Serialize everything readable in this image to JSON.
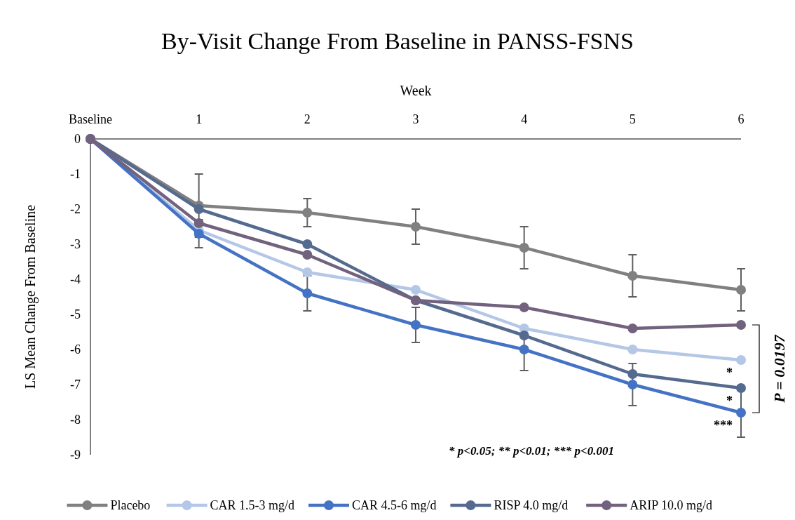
{
  "chart_data": {
    "type": "line",
    "title": "By-Visit Change From Baseline in PANSS-FSNS",
    "xlabel": "Week",
    "ylabel": "LS Mean Change From Baseline",
    "categories": [
      "Baseline",
      "1",
      "2",
      "3",
      "4",
      "5",
      "6"
    ],
    "series": [
      {
        "name": "Placebo",
        "color": "#808080",
        "values": [
          0,
          -1.9,
          -2.1,
          -2.5,
          -3.1,
          -3.9,
          -4.3
        ],
        "errors": [
          null,
          0.9,
          0.4,
          0.5,
          0.6,
          0.6,
          0.6
        ]
      },
      {
        "name": "CAR 1.5-3 mg/d",
        "color": "#b4c7e7",
        "values": [
          0,
          -2.6,
          -3.8,
          -4.3,
          -5.4,
          -6.0,
          -6.3
        ]
      },
      {
        "name": "CAR 4.5-6 mg/d",
        "color": "#4472c4",
        "values": [
          0,
          -2.7,
          -4.4,
          -5.3,
          -6.0,
          -7.0,
          -7.8
        ],
        "errors": [
          null,
          0.4,
          0.5,
          0.5,
          0.6,
          0.6,
          0.7
        ]
      },
      {
        "name": "RISP 4.0 mg/d",
        "color": "#556a8f",
        "values": [
          0,
          -2.0,
          -3.0,
          -4.6,
          -5.6,
          -6.7,
          -7.1
        ]
      },
      {
        "name": "ARIP 10.0 mg/d",
        "color": "#72627e",
        "values": [
          0,
          -2.4,
          -3.3,
          -4.6,
          -4.8,
          -5.4,
          -5.3
        ]
      }
    ],
    "ylim": [
      -9,
      0
    ],
    "yticks": [
      0,
      -1,
      -2,
      -3,
      -4,
      -5,
      -6,
      -7,
      -8,
      -9
    ],
    "grid": false,
    "legend": "bottom",
    "marker": "circle",
    "line_style": "solid",
    "annotations": [
      "* p<0.05; ** p<0.01; *** p<0.001",
      "P = 0.0197",
      {
        "text": "*",
        "x": "6",
        "y": -6.3
      },
      {
        "text": "*",
        "x": "6",
        "y": -7.1
      },
      {
        "text": "***",
        "x": "6",
        "y": -7.8
      }
    ]
  }
}
